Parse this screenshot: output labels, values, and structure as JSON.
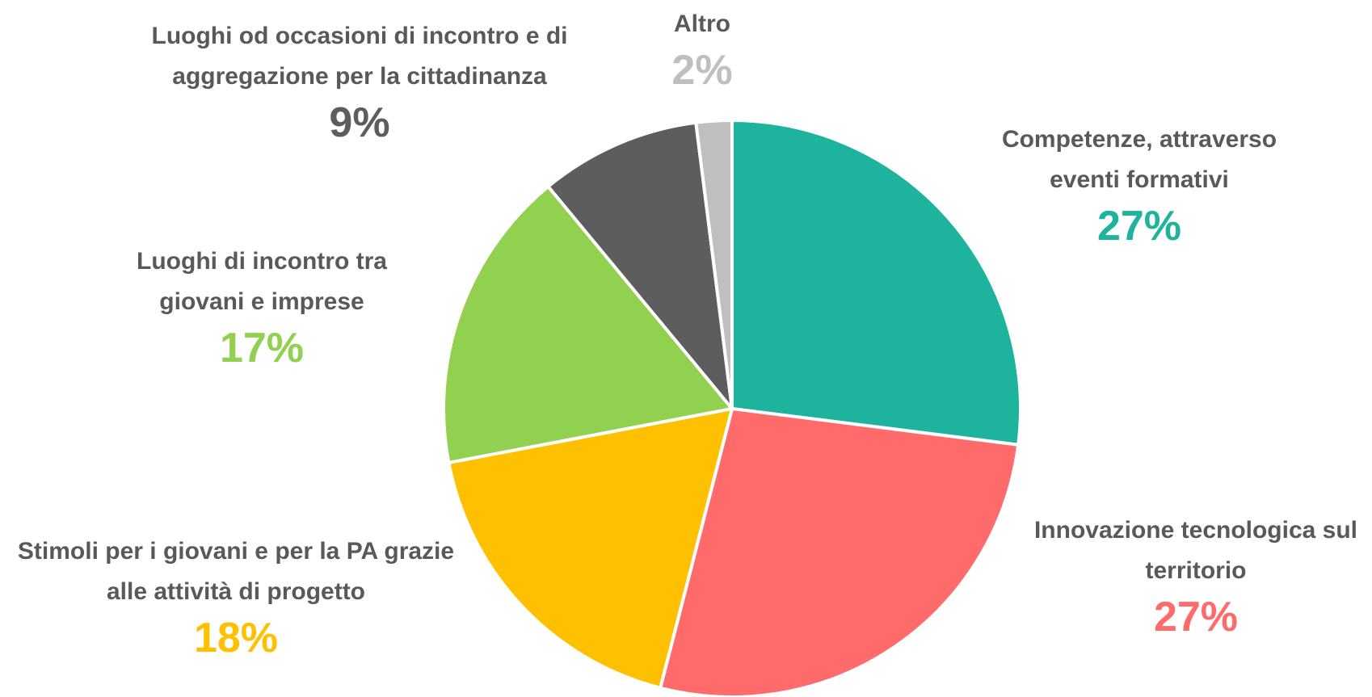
{
  "chart_data": {
    "type": "pie",
    "categories": [
      "Competenze, attraverso eventi formativi",
      "Innovazione tecnologica sul territorio",
      "Stimoli per i giovani e per la PA grazie alle attività di progetto",
      "Luoghi di incontro tra giovani e imprese",
      "Luoghi od occasioni di incontro e di aggregazione per la cittadinanza",
      "Altro"
    ],
    "values": [
      27,
      27,
      18,
      17,
      9,
      2
    ],
    "value_labels": [
      "27%",
      "27%",
      "18%",
      "17%",
      "9%",
      "2%"
    ],
    "colors": [
      "#1db39c",
      "#ff6b6b",
      "#ffc000",
      "#92d050",
      "#5d5d5d",
      "#bfbfbf"
    ]
  }
}
